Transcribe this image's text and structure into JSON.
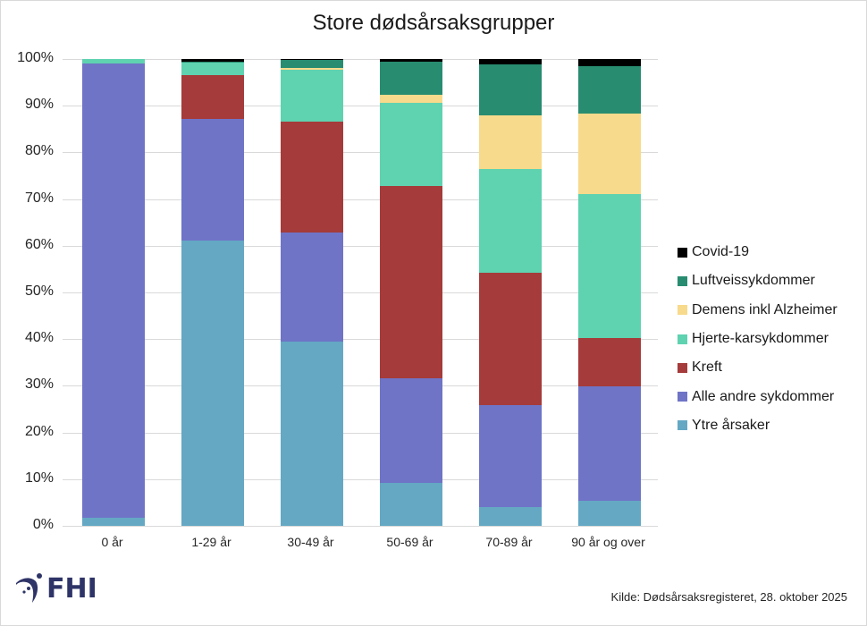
{
  "chart_data": {
    "type": "bar",
    "stacked": true,
    "percent_stacked": true,
    "title": "Store dødsårsaksgrupper",
    "xlabel": "",
    "ylabel": "",
    "ylim": [
      0,
      100
    ],
    "yticks": [
      "0%",
      "10%",
      "20%",
      "30%",
      "40%",
      "50%",
      "60%",
      "70%",
      "80%",
      "90%",
      "100%"
    ],
    "grid": true,
    "legend_position": "right",
    "categories": [
      "0 år",
      "1-29 år",
      "30-49 år",
      "50-69 år",
      "70-89 år",
      "90 år og over"
    ],
    "series": [
      {
        "name": "Ytre årsaker",
        "color": "#64a8c4",
        "values": [
          1.7,
          61.1,
          39.5,
          9.2,
          4.0,
          5.4
        ]
      },
      {
        "name": "Alle andre sykdommer",
        "color": "#6f74c6",
        "values": [
          97.4,
          26.1,
          23.3,
          22.4,
          21.9,
          24.5
        ]
      },
      {
        "name": "Kreft",
        "color": "#a53b3a",
        "values": [
          0.0,
          9.4,
          23.8,
          41.2,
          28.3,
          10.3
        ]
      },
      {
        "name": "Hjerte-karsykdommer",
        "color": "#5fd2b0",
        "values": [
          0.9,
          2.6,
          11.1,
          17.8,
          22.2,
          30.9
        ]
      },
      {
        "name": "Demens inkl Alzheimer",
        "color": "#f7da8b",
        "values": [
          0.0,
          0.0,
          0.3,
          1.8,
          11.5,
          17.2
        ]
      },
      {
        "name": "Luftveissykdommer",
        "color": "#288c70",
        "values": [
          0.0,
          0.3,
          1.8,
          7.1,
          11.0,
          10.2
        ]
      },
      {
        "name": "Covid-19",
        "color": "#000000",
        "values": [
          0.0,
          0.5,
          0.2,
          0.5,
          1.1,
          1.5
        ]
      }
    ]
  },
  "legend": {
    "items": [
      {
        "label": "Covid-19",
        "color": "#000000"
      },
      {
        "label": "Luftveissykdommer",
        "color": "#288c70"
      },
      {
        "label": "Demens inkl Alzheimer",
        "color": "#f7da8b"
      },
      {
        "label": "Hjerte-karsykdommer",
        "color": "#5fd2b0"
      },
      {
        "label": "Kreft",
        "color": "#a53b3a"
      },
      {
        "label": "Alle andre sykdommer",
        "color": "#6f74c6"
      },
      {
        "label": "Ytre årsaker",
        "color": "#64a8c4"
      }
    ]
  },
  "footer": {
    "logo_text": "FHI",
    "logo_color": "#2e3467",
    "source": "Kilde: Dødsårsaksregisteret, 28. oktober 2025"
  }
}
